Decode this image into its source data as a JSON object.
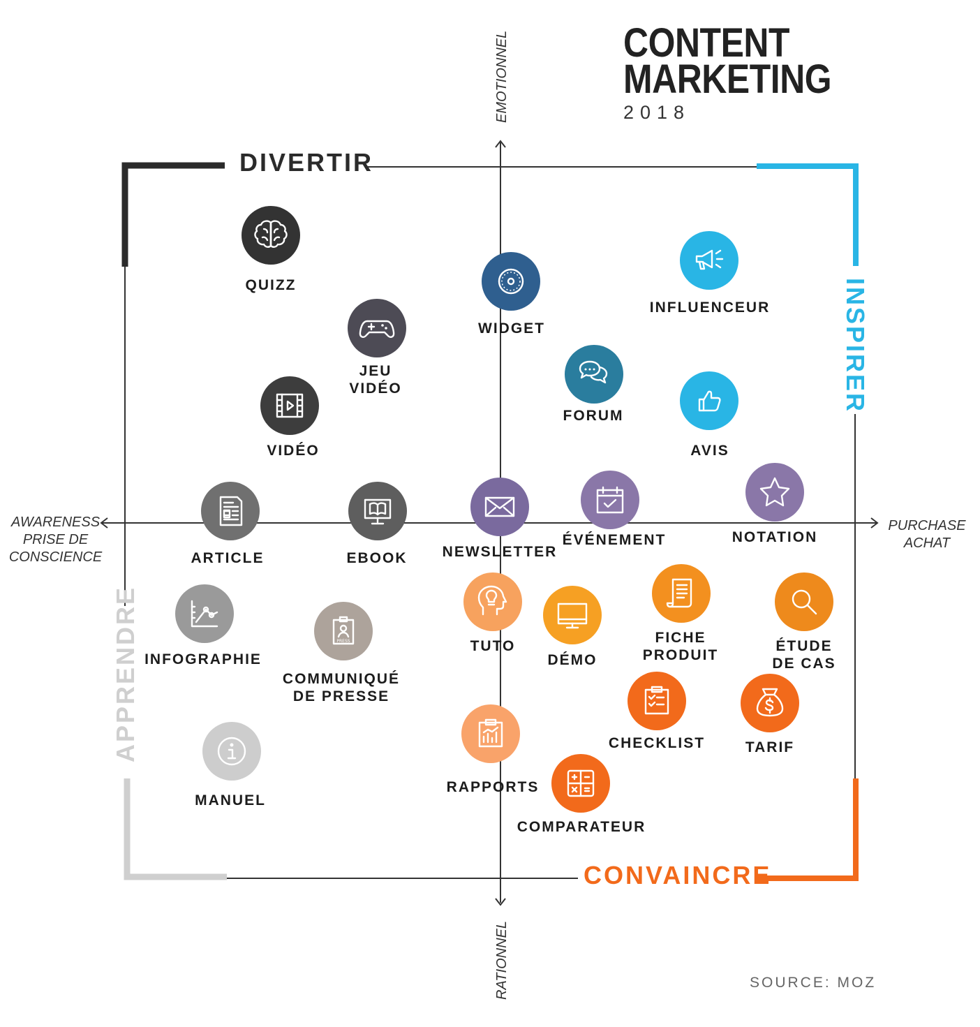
{
  "title": {
    "line1": "CONTENT",
    "line2": "MARKETING",
    "year": "2018"
  },
  "quadrants": {
    "top": "DIVERTIR",
    "right": "INSPIRER",
    "left": "APPRENDRE",
    "bottom": "CONVAINCRE"
  },
  "axes": {
    "up": "EMOTIONNEL",
    "down": "RATIONNEL",
    "left_line1": "AWARENESS",
    "left_line2": "PRISE DE",
    "left_line3": "CONSCIENCE",
    "right_line1": "PURCHASE",
    "right_line2": "ACHAT"
  },
  "colors": {
    "divertir": "#2b2b2b",
    "inspirer": "#29b5e5",
    "apprendre": "#cfcfcf",
    "convaincre": "#f26a1b",
    "axis": "#333333"
  },
  "items": [
    {
      "id": "quizz",
      "label": "QUIZZ",
      "icon": "brain-icon",
      "color": "#333333"
    },
    {
      "id": "jeu-video",
      "label": "JEU\nVIDÉO",
      "icon": "gamepad-icon",
      "color": "#4d4b55"
    },
    {
      "id": "video",
      "label": "VIDÉO",
      "icon": "film-icon",
      "color": "#3d3d3d"
    },
    {
      "id": "widget",
      "label": "WIDGET",
      "icon": "cog-icon",
      "color": "#2f5f8f"
    },
    {
      "id": "influenceur",
      "label": "INFLUENCEUR",
      "icon": "megaphone-icon",
      "color": "#29b5e5"
    },
    {
      "id": "forum",
      "label": "FORUM",
      "icon": "chat-icon",
      "color": "#2a7d9e"
    },
    {
      "id": "avis",
      "label": "AVIS",
      "icon": "thumbs-up-icon",
      "color": "#29b5e5"
    },
    {
      "id": "article",
      "label": "ARTICLE",
      "icon": "document-icon",
      "color": "#707070"
    },
    {
      "id": "ebook",
      "label": "EBOOK",
      "icon": "ebook-icon",
      "color": "#5e5e5e"
    },
    {
      "id": "newsletter",
      "label": "NEWSLETTER",
      "icon": "envelope-icon",
      "color": "#7a6a9e"
    },
    {
      "id": "evenement",
      "label": "ÉVÉNEMENT",
      "icon": "calendar-icon",
      "color": "#8a77a8"
    },
    {
      "id": "notation",
      "label": "NOTATION",
      "icon": "star-icon",
      "color": "#8a77a8"
    },
    {
      "id": "infographie",
      "label": "INFOGRAPHIE",
      "icon": "graph-icon",
      "color": "#9a9a9a"
    },
    {
      "id": "communique",
      "label": "COMMUNIQUÉ\nDE PRESSE",
      "icon": "press-badge-icon",
      "color": "#ada39b"
    },
    {
      "id": "tuto",
      "label": "TUTO",
      "icon": "head-bulb-icon",
      "color": "#f7a25e"
    },
    {
      "id": "demo",
      "label": "DÉMO",
      "icon": "monitor-icon",
      "color": "#f6a023"
    },
    {
      "id": "fiche-produit",
      "label": "FICHE\nPRODUIT",
      "icon": "scroll-icon",
      "color": "#f3901f"
    },
    {
      "id": "etude-de-cas",
      "label": "ÉTUDE\nDE CAS",
      "icon": "magnifier-icon",
      "color": "#ee8a1c"
    },
    {
      "id": "checklist",
      "label": "CHECKLIST",
      "icon": "checklist-icon",
      "color": "#f26a1b"
    },
    {
      "id": "tarif",
      "label": "TARIF",
      "icon": "money-bag-icon",
      "color": "#f26a1b"
    },
    {
      "id": "manuel",
      "label": "MANUEL",
      "icon": "info-icon",
      "color": "#cdcdcd"
    },
    {
      "id": "rapports",
      "label": "RAPPORTS",
      "icon": "report-icon",
      "color": "#f9a36a"
    },
    {
      "id": "comparateur",
      "label": "COMPARATEUR",
      "icon": "calculator-icon",
      "color": "#f26a1b"
    }
  ],
  "source": "SOURCE: MOZ"
}
